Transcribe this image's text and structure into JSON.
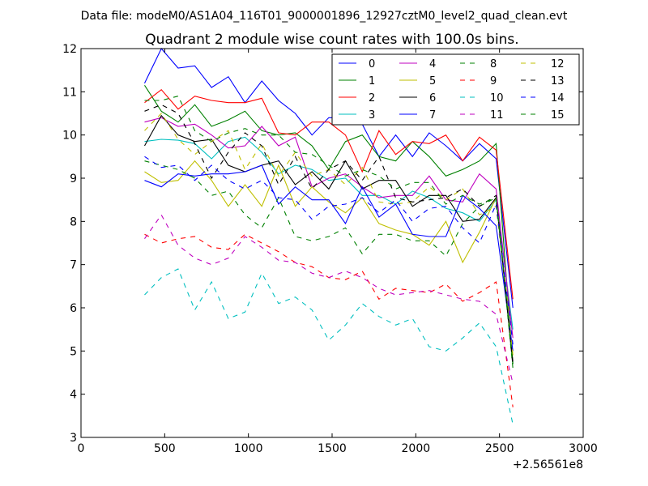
{
  "suptitle": "Data file: modeM0/AS1A04_116T01_9000001896_12927cztM0_level2_quad_clean.evt",
  "chart_data": {
    "type": "line",
    "title": "Quadrant 2 module wise count rates with 100.0s bins.",
    "xlabel": "",
    "ylabel": "",
    "x_offset_label": "+2.56561e8",
    "xlim": [
      0,
      3000
    ],
    "ylim": [
      3,
      12
    ],
    "xticks": [
      0,
      500,
      1000,
      1500,
      2000,
      2500,
      3000
    ],
    "yticks": [
      3,
      4,
      5,
      6,
      7,
      8,
      9,
      10,
      11,
      12
    ],
    "grid": false,
    "legend_position": "top-right",
    "legend_columns": 4,
    "x": [
      380,
      480,
      580,
      680,
      780,
      880,
      980,
      1080,
      1180,
      1280,
      1380,
      1480,
      1580,
      1680,
      1780,
      1880,
      1980,
      2080,
      2180,
      2280,
      2380,
      2480,
      2580
    ],
    "series": [
      {
        "name": "0",
        "color": "#0000ff",
        "style": "solid",
        "values": [
          11.2,
          12.0,
          11.55,
          11.6,
          11.1,
          11.35,
          10.75,
          11.25,
          10.8,
          10.5,
          10.0,
          10.4,
          10.4,
          10.25,
          9.5,
          10.0,
          9.5,
          10.05,
          9.75,
          9.4,
          9.8,
          9.45,
          6.0
        ]
      },
      {
        "name": "1",
        "color": "#008000",
        "style": "solid",
        "values": [
          11.15,
          10.55,
          10.3,
          10.7,
          10.2,
          10.35,
          10.55,
          10.1,
          10.0,
          10.05,
          9.75,
          9.2,
          9.85,
          10.0,
          9.5,
          9.4,
          9.85,
          9.5,
          9.05,
          9.2,
          9.4,
          9.8,
          4.7
        ]
      },
      {
        "name": "2",
        "color": "#ff0000",
        "style": "solid",
        "values": [
          10.75,
          11.05,
          10.6,
          10.9,
          10.8,
          10.75,
          10.75,
          10.85,
          10.05,
          10.0,
          10.3,
          10.3,
          10.0,
          9.15,
          10.1,
          9.55,
          9.85,
          9.8,
          10.0,
          9.4,
          9.95,
          9.65,
          6.2
        ]
      },
      {
        "name": "3",
        "color": "#00bfbf",
        "style": "solid",
        "values": [
          9.85,
          9.9,
          9.88,
          9.8,
          9.45,
          9.85,
          9.95,
          9.6,
          9.1,
          9.3,
          9.2,
          8.95,
          9.0,
          8.6,
          8.6,
          8.4,
          8.7,
          8.55,
          8.3,
          8.2,
          8.0,
          8.5,
          5.5
        ]
      },
      {
        "name": "4",
        "color": "#bf00bf",
        "style": "solid",
        "values": [
          10.3,
          10.4,
          10.2,
          10.25,
          10.0,
          9.7,
          9.75,
          10.2,
          9.75,
          9.95,
          8.8,
          9.0,
          9.1,
          8.8,
          8.55,
          8.6,
          8.6,
          9.05,
          8.5,
          8.45,
          9.1,
          8.75,
          5.3
        ]
      },
      {
        "name": "5",
        "color": "#bfbf00",
        "style": "solid",
        "values": [
          9.15,
          8.9,
          8.95,
          9.4,
          8.95,
          8.35,
          8.85,
          8.35,
          9.3,
          8.35,
          8.8,
          8.45,
          8.2,
          8.55,
          7.95,
          7.8,
          7.7,
          7.45,
          8.0,
          7.05,
          7.75,
          8.55,
          4.9
        ]
      },
      {
        "name": "6",
        "color": "#000000",
        "style": "solid",
        "values": [
          9.75,
          10.45,
          10.0,
          9.85,
          9.9,
          9.3,
          9.15,
          9.3,
          9.4,
          8.85,
          9.15,
          8.75,
          9.4,
          8.75,
          8.95,
          8.95,
          8.35,
          8.6,
          8.6,
          8.0,
          8.05,
          8.55,
          4.75
        ]
      },
      {
        "name": "7",
        "color": "#0000ff",
        "style": "solid",
        "values": [
          8.95,
          8.8,
          9.1,
          9.05,
          9.1,
          9.1,
          9.15,
          9.3,
          8.4,
          8.8,
          8.5,
          8.5,
          7.95,
          8.8,
          8.1,
          8.4,
          7.7,
          7.65,
          7.65,
          8.6,
          8.3,
          7.9,
          5.0
        ]
      },
      {
        "name": "8",
        "color": "#008000",
        "style": "dashed",
        "values": [
          9.4,
          9.3,
          9.2,
          9.0,
          8.6,
          8.7,
          8.15,
          7.85,
          8.55,
          7.65,
          7.55,
          7.65,
          7.85,
          7.25,
          7.7,
          7.7,
          7.55,
          7.55,
          7.2,
          7.95,
          8.35,
          8.55,
          4.6
        ]
      },
      {
        "name": "9",
        "color": "#ff0000",
        "style": "dashed",
        "values": [
          7.7,
          7.5,
          7.6,
          7.65,
          7.4,
          7.35,
          7.7,
          7.5,
          7.3,
          7.05,
          6.95,
          6.7,
          6.65,
          6.85,
          6.2,
          6.45,
          6.4,
          6.35,
          6.55,
          6.15,
          6.35,
          6.6,
          3.7
        ]
      },
      {
        "name": "10",
        "color": "#00bfbf",
        "style": "dashed",
        "values": [
          6.3,
          6.7,
          6.9,
          5.95,
          6.6,
          5.75,
          5.9,
          6.8,
          6.1,
          6.25,
          5.95,
          5.25,
          5.6,
          6.1,
          5.8,
          5.6,
          5.75,
          5.1,
          5.0,
          5.3,
          5.65,
          5.1,
          3.3
        ]
      },
      {
        "name": "11",
        "color": "#bf00bf",
        "style": "dashed",
        "values": [
          7.6,
          8.15,
          7.45,
          7.15,
          7.0,
          7.15,
          7.65,
          7.4,
          7.1,
          7.05,
          6.8,
          6.7,
          6.85,
          6.7,
          6.45,
          6.3,
          6.35,
          6.4,
          6.3,
          6.2,
          6.15,
          5.85,
          4.25
        ]
      },
      {
        "name": "12",
        "color": "#bfbf00",
        "style": "dashed",
        "values": [
          10.1,
          10.5,
          9.9,
          9.55,
          9.85,
          10.1,
          9.2,
          9.8,
          9.05,
          9.6,
          9.05,
          9.2,
          8.85,
          9.25,
          8.45,
          8.4,
          8.45,
          8.8,
          8.5,
          8.75,
          8.15,
          8.35,
          4.9
        ]
      },
      {
        "name": "13",
        "color": "#000000",
        "style": "dashed",
        "values": [
          10.55,
          10.7,
          10.5,
          9.8,
          9.0,
          9.6,
          10.05,
          9.75,
          8.85,
          9.5,
          8.75,
          9.2,
          9.4,
          8.95,
          9.5,
          8.55,
          8.45,
          8.5,
          8.55,
          8.75,
          8.35,
          8.6,
          4.65
        ]
      },
      {
        "name": "14",
        "color": "#0000ff",
        "style": "dashed",
        "values": [
          9.5,
          9.25,
          9.3,
          8.95,
          9.3,
          8.95,
          8.75,
          8.95,
          8.55,
          8.5,
          8.05,
          8.35,
          8.4,
          8.55,
          8.2,
          8.5,
          8.0,
          8.3,
          8.35,
          7.85,
          7.5,
          8.4,
          5.15
        ]
      },
      {
        "name": "15",
        "color": "#008000",
        "style": "dashed",
        "values": [
          10.8,
          10.8,
          10.9,
          10.1,
          9.85,
          10.05,
          10.15,
          10.0,
          10.0,
          9.6,
          9.55,
          9.3,
          9.05,
          9.2,
          9.05,
          8.75,
          8.9,
          8.9,
          8.4,
          8.6,
          8.4,
          8.55,
          4.7
        ]
      }
    ]
  }
}
